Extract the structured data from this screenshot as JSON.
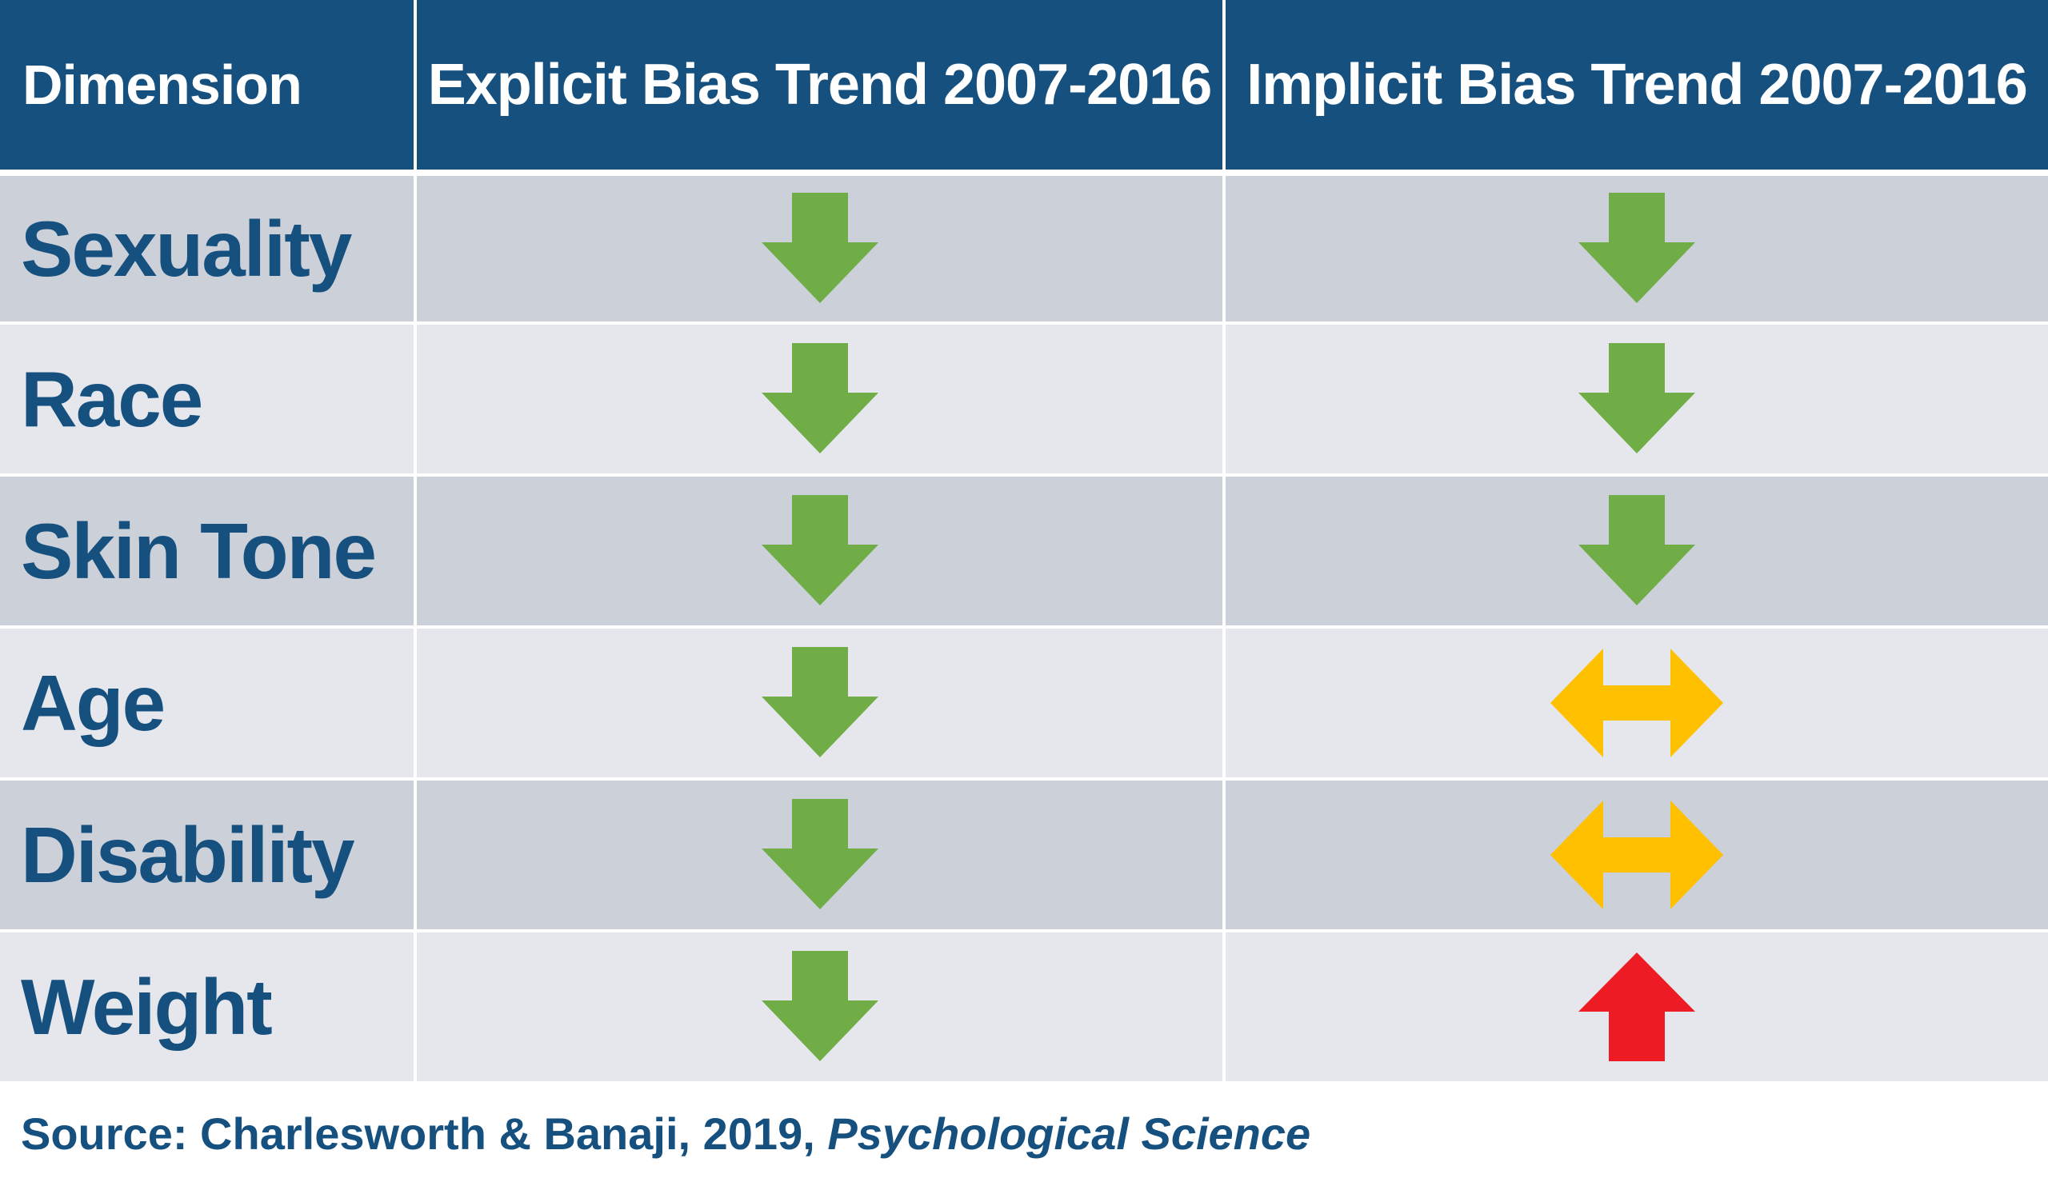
{
  "header": {
    "dimension": "Dimension",
    "explicit": "Explicit Bias Trend 2007-2016",
    "implicit": "Implicit Bias Trend 2007-2016"
  },
  "rows": [
    {
      "label": "Sexuality",
      "explicit": "down",
      "implicit": "down"
    },
    {
      "label": "Race",
      "explicit": "down",
      "implicit": "down"
    },
    {
      "label": "Skin Tone",
      "explicit": "down",
      "implicit": "down"
    },
    {
      "label": "Age",
      "explicit": "down",
      "implicit": "no-change"
    },
    {
      "label": "Disability",
      "explicit": "down",
      "implicit": "no-change"
    },
    {
      "label": "Weight",
      "explicit": "down",
      "implicit": "up"
    }
  ],
  "source": {
    "prefix": "Source: Charlesworth & Banaji, 2019, ",
    "journal": "Psychological Science"
  },
  "colors": {
    "header_bg": "#16507f",
    "text_blue": "#16507f",
    "row_dark": "#cbd0d9",
    "row_light": "#e6e7ec",
    "arrow_down": "#70ad47",
    "arrow_no_change": "#ffc000",
    "arrow_up": "#ed1c24"
  },
  "icons": {
    "down": "arrow-down-icon",
    "no-change": "arrow-left-right-icon",
    "up": "arrow-up-icon"
  }
}
